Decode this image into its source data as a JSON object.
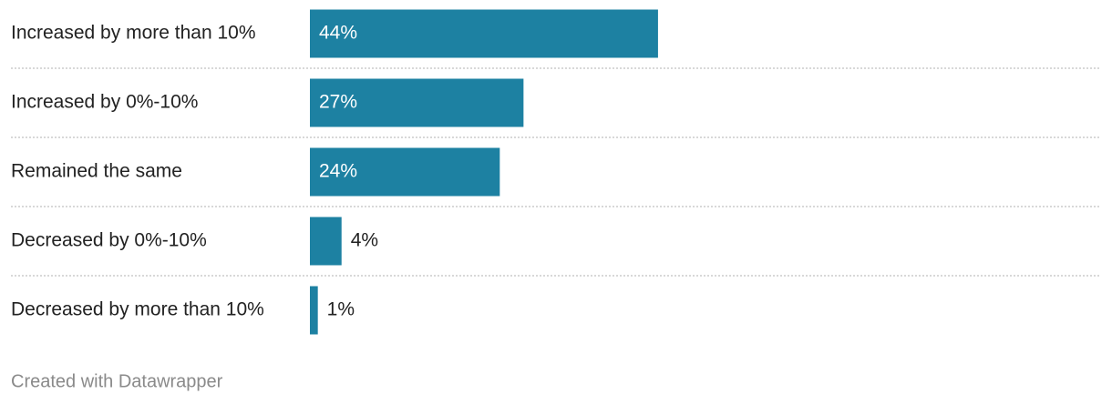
{
  "chart_data": {
    "type": "bar",
    "orientation": "horizontal",
    "categories": [
      "Increased by more than 10%",
      "Increased by 0%-10%",
      "Remained the same",
      "Decreased by 0%-10%",
      "Decreased by more than 10%"
    ],
    "values": [
      44,
      27,
      24,
      4,
      1
    ],
    "value_labels": [
      "44%",
      "27%",
      "24%",
      "4%",
      "1%"
    ],
    "color": "#1d81a2",
    "footer": "Created with Datawrapper"
  }
}
